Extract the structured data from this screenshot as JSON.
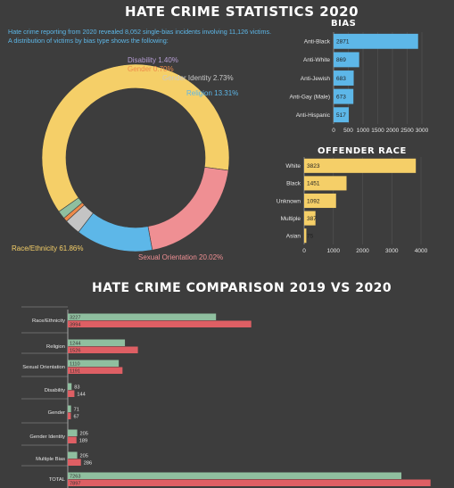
{
  "main_title": "HATE CRIME STATISTICS 2020",
  "intro": "Hate crime reporting from 2020 revealed 8,052 single-bias incidents involving 11,126 victims. A distribution of victims by bias type shows the following:",
  "comparison_title": "HATE CRIME COMPARISON 2019 VS 2020",
  "colors": {
    "yellow": "#f5cf68",
    "pink": "#ef8f93",
    "blue": "#5db7e8",
    "green": "#8fbf9f",
    "red": "#de5f64",
    "lavender": "#b79fd6",
    "orange": "#ee8a4a"
  },
  "chart_data": [
    {
      "type": "pie",
      "title": "",
      "donut": true,
      "slices": [
        {
          "label": "Race/Ethnicity 61.86%",
          "value": 61.86,
          "color": "#f5cf68",
          "label_color": "#f5cf68"
        },
        {
          "label": "Sexual Orientation 20.02%",
          "value": 20.02,
          "color": "#ef8f93",
          "label_color": "#ef8f93"
        },
        {
          "label": "Religion 13.31%",
          "value": 13.31,
          "color": "#5db7e8",
          "label_color": "#5db7e8"
        },
        {
          "label": "Gender Identity 2.73%",
          "value": 2.73,
          "color": "#c4c4c4",
          "label_color": "#c9c9c9"
        },
        {
          "label": "Gender 0.70%",
          "value": 0.7,
          "color": "#ee8a4a",
          "label_color": "#ee8a4a"
        },
        {
          "label": "Disability 1.40%",
          "value": 1.4,
          "color": "#8fbf9f",
          "label_color": "#b79fd6"
        }
      ]
    },
    {
      "type": "bar",
      "orientation": "horizontal",
      "title": "BIAS",
      "categories": [
        "Anti-Black",
        "Anti-White",
        "Anti-Jewish",
        "Anti-Gay (Male)",
        "Anti-Hispanic"
      ],
      "values": [
        2871,
        869,
        683,
        673,
        517
      ],
      "xlim": [
        0,
        3000
      ],
      "ticks": [
        "0",
        "500",
        "1000",
        "1500",
        "2000",
        "2500",
        "3000"
      ],
      "color": "#5db7e8"
    },
    {
      "type": "bar",
      "orientation": "horizontal",
      "title": "OFFENDER RACE",
      "categories": [
        "White",
        "Black",
        "Unknown",
        "Multiple",
        "Asian"
      ],
      "values": [
        3823,
        1451,
        1092,
        387,
        75
      ],
      "xlim": [
        0,
        4000
      ],
      "ticks": [
        "0",
        "1000",
        "2000",
        "3000",
        "4000"
      ],
      "color": "#f5cf68"
    },
    {
      "type": "bar",
      "orientation": "horizontal",
      "title": "HATE CRIME COMPARISON 2019 VS 2020",
      "categories": [
        "Race/Ethnicity",
        "Religion",
        "Sexual Orientation",
        "Disability",
        "Gender",
        "Gender Identity",
        "Multiple Bias",
        "TOTAL"
      ],
      "series": [
        {
          "values": [
            3227,
            1244,
            1110,
            83,
            71,
            205,
            205,
            7263
          ],
          "color": "#8fbf9f"
        },
        {
          "values": [
            3994,
            1526,
            1191,
            144,
            67,
            189,
            286,
            7897
          ],
          "color": "#de5f64"
        }
      ],
      "xlim": [
        0,
        8000
      ]
    }
  ]
}
